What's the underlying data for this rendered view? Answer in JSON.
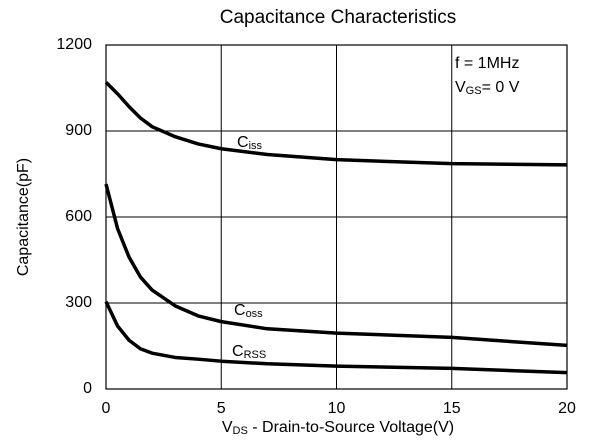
{
  "chart_data": {
    "type": "line",
    "title": "Capacitance Characteristics",
    "xlabel": [
      "V",
      "DS",
      " - Drain-to-Source Voltage(V)"
    ],
    "ylabel": "Capacitance(pF)",
    "annotations": [
      [
        "f  =  1MHz"
      ],
      [
        "V",
        "GS",
        "= 0 V"
      ]
    ],
    "x": [
      0,
      0.5,
      1,
      1.5,
      2,
      3,
      4,
      5,
      7,
      10,
      15,
      20
    ],
    "series": [
      {
        "name": "Ciss",
        "color": "#000000",
        "values": [
          1070,
          1030,
          985,
          945,
          915,
          880,
          855,
          838,
          818,
          800,
          786,
          782
        ]
      },
      {
        "name": "Coss",
        "color": "#000000",
        "values": [
          715,
          560,
          460,
          390,
          345,
          290,
          255,
          235,
          210,
          195,
          180,
          152
        ]
      },
      {
        "name": "CRSS",
        "color": "#000000",
        "values": [
          305,
          220,
          170,
          140,
          125,
          110,
          104,
          97,
          88,
          80,
          72,
          57
        ]
      }
    ],
    "xlim": [
      0,
      20
    ],
    "xticks": [
      0,
      5,
      10,
      15,
      20
    ],
    "ylim": [
      0,
      1200
    ],
    "yticks": [
      0,
      300,
      600,
      900,
      1200
    ],
    "grid": true
  }
}
